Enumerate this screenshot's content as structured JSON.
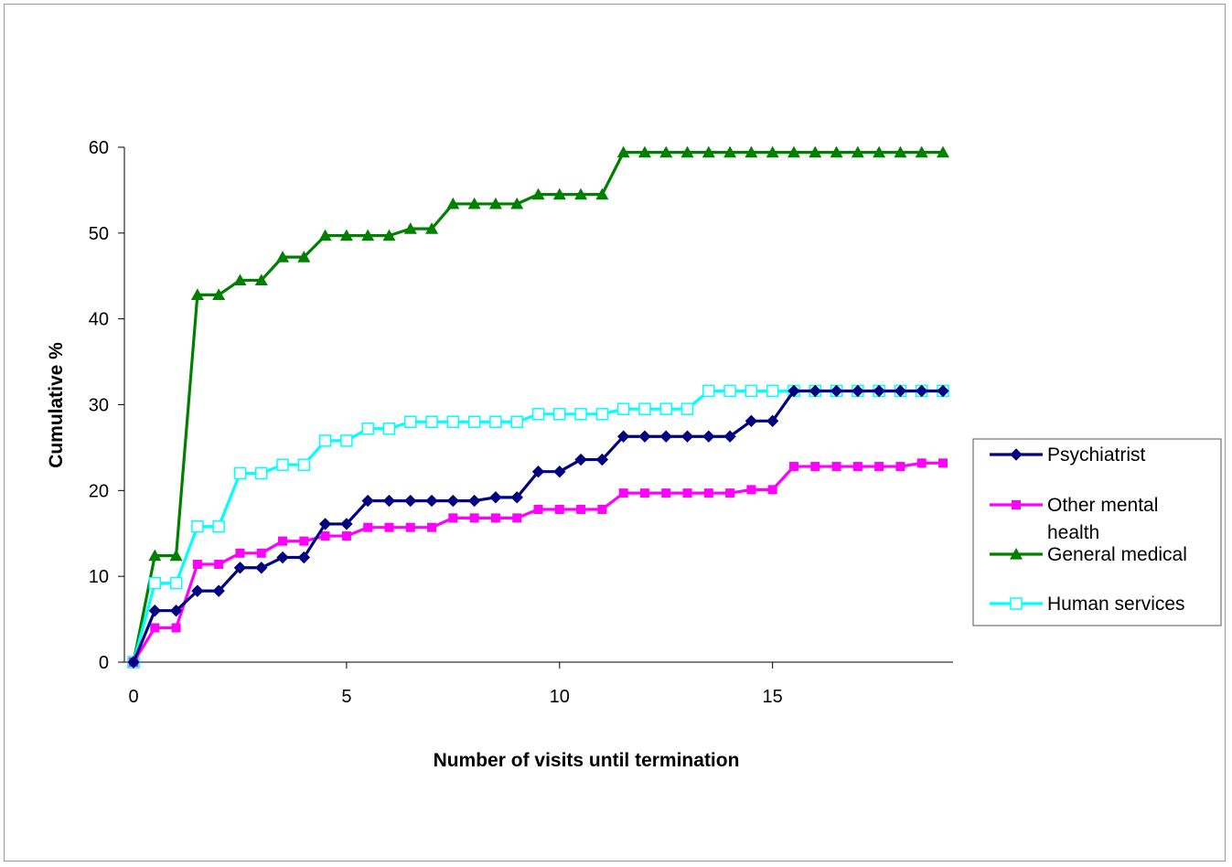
{
  "chart_data": {
    "type": "line",
    "title": "",
    "xlabel": "Number of visits until termination",
    "ylabel": "Cumulative %",
    "xlim": [
      0,
      19.2
    ],
    "ylim": [
      0,
      60
    ],
    "xticks": [
      0,
      5,
      10,
      15
    ],
    "yticks": [
      0,
      10,
      20,
      30,
      40,
      50,
      60
    ],
    "legend_position": "right",
    "grid": false,
    "x": [
      0,
      0.5,
      1,
      1.5,
      2,
      2.5,
      3,
      3.5,
      4,
      4.5,
      5,
      5.5,
      6,
      6.5,
      7,
      7.5,
      8,
      8.5,
      9,
      9.5,
      10,
      10.5,
      11,
      11.5,
      12,
      12.5,
      13,
      13.5,
      14,
      14.5,
      15,
      15.5,
      16,
      16.5,
      17,
      17.5,
      18,
      18.5,
      19
    ],
    "series": [
      {
        "name": "Psychiatrist",
        "color": "#000080",
        "marker": "diamond",
        "values": [
          0,
          6.0,
          6.0,
          8.3,
          8.3,
          11.0,
          11.0,
          12.2,
          12.2,
          16.1,
          16.1,
          18.8,
          18.8,
          18.8,
          18.8,
          18.8,
          18.8,
          19.2,
          19.2,
          22.2,
          22.2,
          23.6,
          23.6,
          26.3,
          26.3,
          26.3,
          26.3,
          26.3,
          26.3,
          28.1,
          28.1,
          31.6,
          31.6,
          31.6,
          31.6,
          31.6,
          31.6,
          31.6,
          31.6
        ]
      },
      {
        "name": "Other mental health",
        "color": "#ff00ff",
        "marker": "square",
        "values": [
          0,
          4.0,
          4.0,
          11.4,
          11.4,
          12.7,
          12.7,
          14.1,
          14.1,
          14.7,
          14.7,
          15.7,
          15.7,
          15.7,
          15.7,
          16.8,
          16.8,
          16.8,
          16.8,
          17.8,
          17.8,
          17.8,
          17.8,
          19.7,
          19.7,
          19.7,
          19.7,
          19.7,
          19.7,
          20.1,
          20.1,
          22.8,
          22.8,
          22.8,
          22.8,
          22.8,
          22.8,
          23.2,
          23.2
        ]
      },
      {
        "name": "General medical",
        "color": "#008000",
        "marker": "triangle",
        "values": [
          0,
          12.4,
          12.4,
          42.8,
          42.8,
          44.5,
          44.5,
          47.2,
          47.2,
          49.7,
          49.7,
          49.7,
          49.7,
          50.5,
          50.5,
          53.4,
          53.4,
          53.4,
          53.4,
          54.5,
          54.5,
          54.5,
          54.5,
          59.4,
          59.4,
          59.4,
          59.4,
          59.4,
          59.4,
          59.4,
          59.4,
          59.4,
          59.4,
          59.4,
          59.4,
          59.4,
          59.4,
          59.4,
          59.4
        ]
      },
      {
        "name": "Human services",
        "color": "#00ffff",
        "marker": "open-square",
        "values": [
          0,
          9.2,
          9.2,
          15.8,
          15.8,
          22.0,
          22.0,
          23.0,
          23.0,
          25.8,
          25.8,
          27.2,
          27.2,
          28.0,
          28.0,
          28.0,
          28.0,
          28.0,
          28.0,
          28.9,
          28.9,
          28.9,
          28.9,
          29.5,
          29.5,
          29.5,
          29.5,
          31.6,
          31.6,
          31.6,
          31.6,
          31.6,
          31.6,
          31.6,
          31.6,
          31.6,
          31.6,
          31.6,
          31.6
        ]
      }
    ],
    "legend": {
      "items": [
        "Psychiatrist",
        "Other mental\nhealth",
        "General medical",
        "Human services"
      ]
    }
  }
}
